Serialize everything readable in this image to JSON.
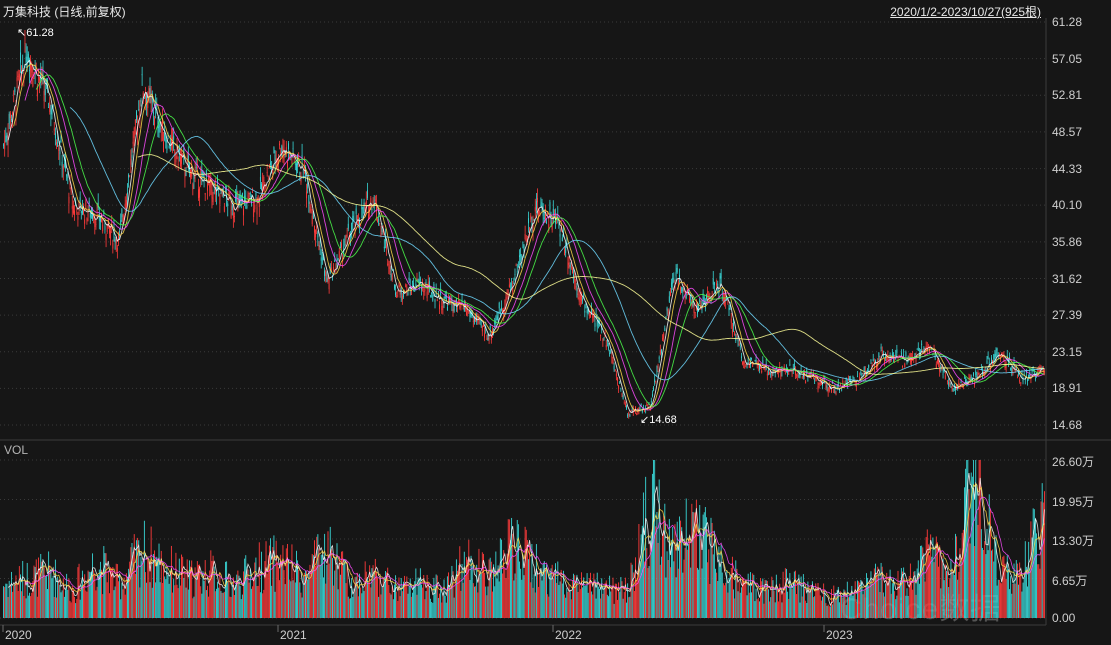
{
  "header": {
    "title": "万集科技 (日线,前复权)",
    "range": "2020/1/2-2023/10/27(925根)"
  },
  "volume_panel": {
    "label": "VOL"
  },
  "watermark": "Choice数据",
  "colors": {
    "background": "#161616",
    "up": "#ff3b3b",
    "down": "#39d6d6",
    "ma5": "#ffffff",
    "ma10": "#ffd94a",
    "ma20": "#ff4cff",
    "ma30": "#4cff4c",
    "ma60": "#6fd9ff",
    "ma120": "#ffff99",
    "grid": "#3a3a3a"
  },
  "chart_data": [
    {
      "type": "candlestick",
      "title": "万集科技 (日线,前复权)",
      "x_tick_labels": [
        "2020",
        "2021",
        "2022",
        "2023"
      ],
      "y_tick_labels": [
        "61.28",
        "57.05",
        "52.81",
        "48.57",
        "44.33",
        "40.10",
        "35.86",
        "31.62",
        "27.39",
        "23.15",
        "18.91",
        "14.68"
      ],
      "ylim": [
        14.68,
        61.28
      ],
      "annotations": [
        {
          "text": "61.28",
          "kind": "max",
          "value": 61.28
        },
        {
          "text": "14.68",
          "kind": "min",
          "value": 14.68
        }
      ],
      "series": [
        {
          "x": [
            "2020-01",
            "2020-02",
            "2020-03",
            "2020-04",
            "2020-05",
            "2020-06",
            "2020-07",
            "2020-08",
            "2020-09",
            "2020-10",
            "2020-11",
            "2020-12",
            "2021-01",
            "2021-02",
            "2021-03",
            "2021-04",
            "2021-05",
            "2021-06",
            "2021-07",
            "2021-08",
            "2021-09",
            "2021-10",
            "2021-11",
            "2021-12",
            "2022-01",
            "2022-02",
            "2022-03",
            "2022-04",
            "2022-05",
            "2022-06",
            "2022-07",
            "2022-08",
            "2022-09",
            "2022-10",
            "2022-11",
            "2022-12",
            "2023-01",
            "2023-02",
            "2023-03",
            "2023-04",
            "2023-05",
            "2023-06",
            "2023-07",
            "2023-08",
            "2023-09",
            "2023-10"
          ],
          "values": [
            47,
            58,
            52,
            40,
            39,
            36,
            54,
            48,
            44,
            42,
            40,
            41,
            47,
            44,
            31,
            37,
            41,
            30,
            31,
            29,
            28,
            25,
            31,
            40,
            38,
            29,
            25,
            16,
            17,
            32,
            28,
            31,
            22,
            21,
            21,
            20,
            19,
            20,
            23,
            22,
            24,
            19,
            20,
            23,
            20,
            21
          ]
        }
      ]
    },
    {
      "type": "bar",
      "title": "VOL",
      "x_tick_labels": [
        "2020",
        "2021",
        "2022",
        "2023"
      ],
      "y_tick_labels": [
        "26.60万",
        "19.95万",
        "13.30万",
        "6.65万",
        "0.00"
      ],
      "ylim": [
        0,
        26.6
      ],
      "series": [
        {
          "x": [
            "2020-01",
            "2020-02",
            "2020-03",
            "2020-04",
            "2020-05",
            "2020-06",
            "2020-07",
            "2020-08",
            "2020-09",
            "2020-10",
            "2020-11",
            "2020-12",
            "2021-01",
            "2021-02",
            "2021-03",
            "2021-04",
            "2021-05",
            "2021-06",
            "2021-07",
            "2021-08",
            "2021-09",
            "2021-10",
            "2021-11",
            "2021-12",
            "2022-01",
            "2022-02",
            "2022-03",
            "2022-04",
            "2022-05",
            "2022-06",
            "2022-07",
            "2022-08",
            "2022-09",
            "2022-10",
            "2022-11",
            "2022-12",
            "2023-01",
            "2023-02",
            "2023-03",
            "2023-04",
            "2023-05",
            "2023-06",
            "2023-07",
            "2023-08",
            "2023-09",
            "2023-10"
          ],
          "values": [
            6,
            7,
            8,
            5,
            10,
            6,
            12,
            9,
            7,
            8,
            6,
            9,
            10,
            7,
            12,
            6,
            8,
            5,
            6,
            5,
            10,
            7,
            13,
            9,
            7,
            6,
            5,
            5,
            20,
            12,
            17,
            9,
            6,
            5,
            6,
            5,
            4,
            5,
            7,
            6,
            11,
            8,
            26,
            9,
            8,
            18
          ]
        }
      ]
    }
  ]
}
